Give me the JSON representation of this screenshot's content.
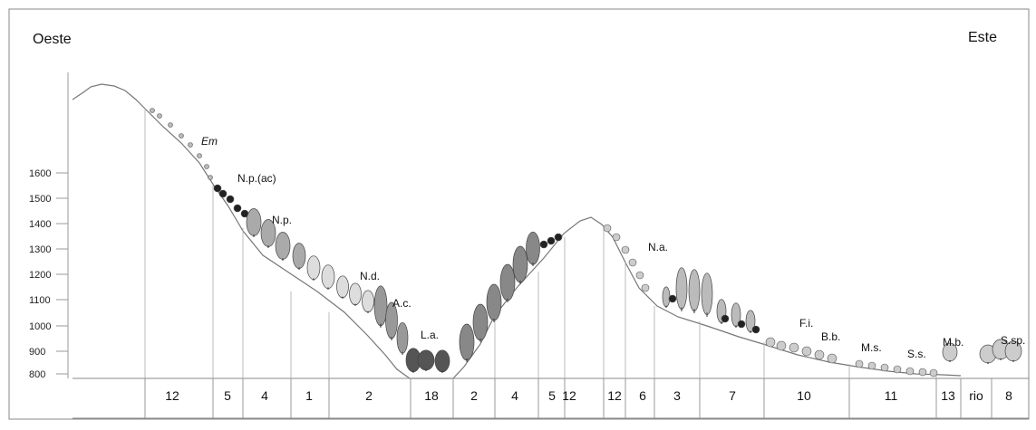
{
  "orientation": {
    "west_label": "Oeste",
    "east_label": "Este"
  },
  "y_axis": {
    "ticks": [
      "1600",
      "1500",
      "1400",
      "1300",
      "1200",
      "1100",
      "1000",
      "900",
      "800"
    ]
  },
  "species_labels": [
    "Em",
    "N.p.(ac)",
    "N.p.",
    "N.d.",
    "A.c.",
    "L.a.",
    "N.a.",
    "F.i.",
    "B.b.",
    "M.s.",
    "S.s.",
    "M.b.",
    "S.sp."
  ],
  "zones": [
    "12",
    "5",
    "4",
    "1",
    "2",
    "18",
    "2",
    "4",
    "5",
    "12",
    "12",
    "6",
    "3",
    "7",
    "10",
    "11",
    "13",
    "rio",
    "8"
  ]
}
